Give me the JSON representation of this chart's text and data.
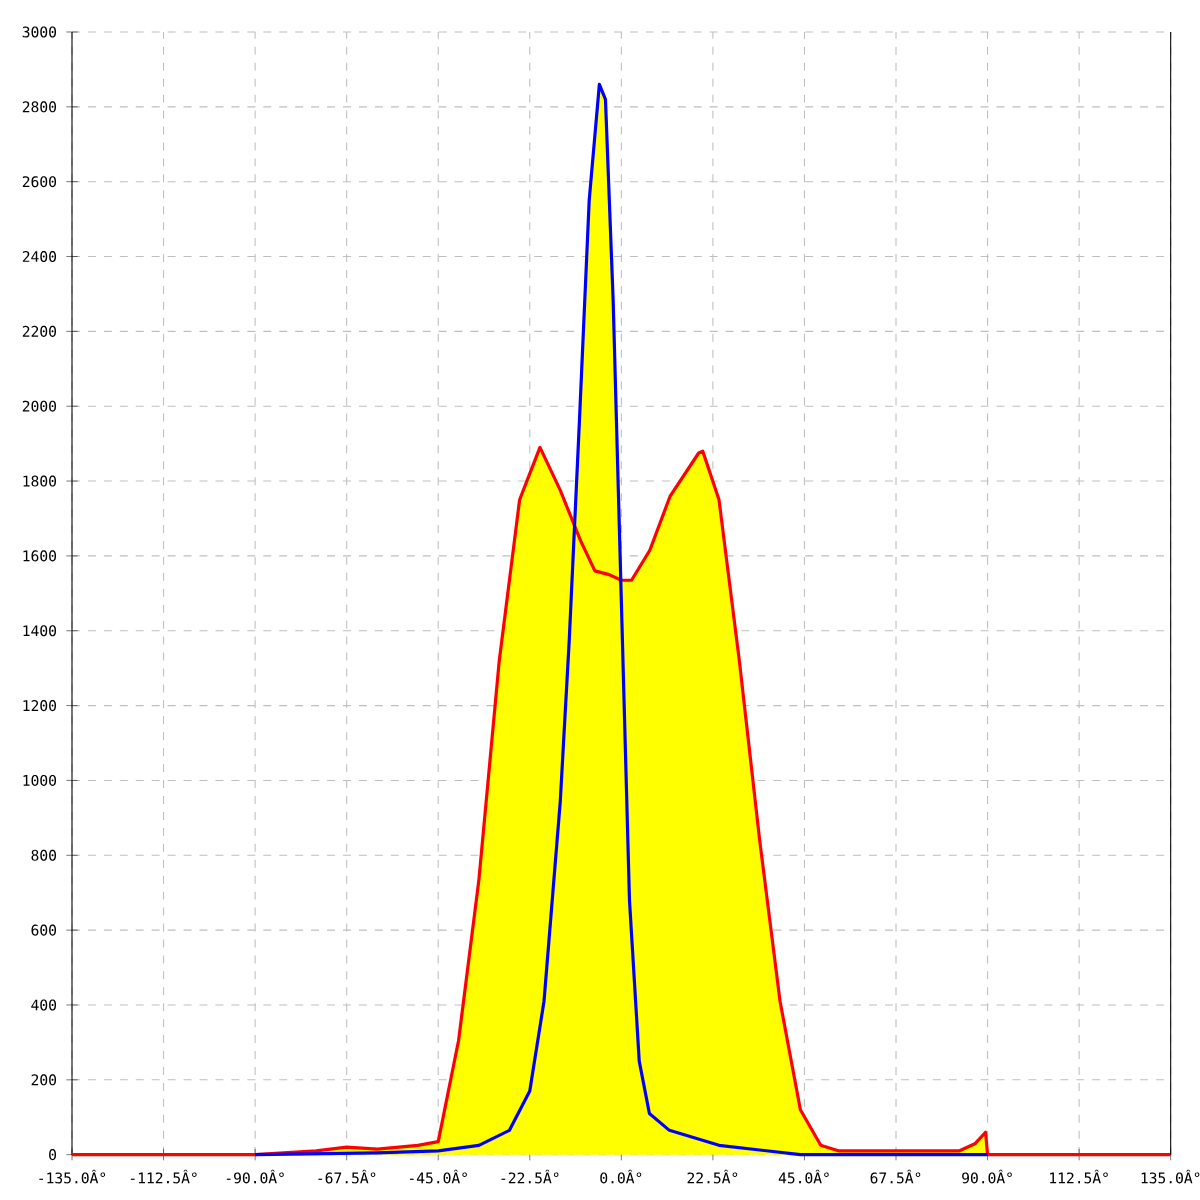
{
  "chart_data": {
    "type": "area",
    "xlim": [
      -135,
      135
    ],
    "ylim": [
      0,
      3000
    ],
    "xticks": [
      {
        "value": -135,
        "label": "-135.0Â°"
      },
      {
        "value": -112.5,
        "label": "-112.5Â°"
      },
      {
        "value": -90,
        "label": "-90.0Â°"
      },
      {
        "value": -67.5,
        "label": "-67.5Â°"
      },
      {
        "value": -45,
        "label": "-45.0Â°"
      },
      {
        "value": -22.5,
        "label": "-22.5Â°"
      },
      {
        "value": 0,
        "label": "0.0Â°"
      },
      {
        "value": 22.5,
        "label": "22.5Â°"
      },
      {
        "value": 45,
        "label": "45.0Â°"
      },
      {
        "value": 67.5,
        "label": "67.5Â°"
      },
      {
        "value": 90,
        "label": "90.0Â°"
      },
      {
        "value": 112.5,
        "label": "112.5Â°"
      },
      {
        "value": 135,
        "label": "135.0Â°"
      }
    ],
    "yticks": [
      0,
      200,
      400,
      600,
      800,
      1000,
      1200,
      1400,
      1600,
      1800,
      2000,
      2200,
      2400,
      2600,
      2800,
      3000
    ],
    "grid": true,
    "series": [
      {
        "color": "#ffff00",
        "x": [
          -135,
          -90,
          -75,
          -67.5,
          -60,
          -50,
          -45,
          -40,
          -35,
          -30,
          -25,
          -20,
          -15,
          -11.5,
          -10.3,
          -7.9,
          -5.4,
          -3.9,
          -2,
          -0.2,
          0,
          2.5,
          7,
          12,
          19,
          20,
          24,
          29,
          34,
          39,
          44,
          49,
          53.5,
          70,
          83,
          87,
          89.5,
          90,
          135
        ],
        "values": [
          0,
          0,
          10,
          20,
          15,
          25,
          35,
          305,
          735,
          1320,
          1750,
          1890,
          1775,
          1680,
          1960,
          2550,
          2860,
          2820,
          2280,
          1540,
          1535,
          1535,
          1615,
          1760,
          1875,
          1880,
          1750,
          1320,
          840,
          410,
          120,
          25,
          10,
          10,
          10,
          30,
          60,
          0,
          0
        ]
      },
      {
        "type": "line",
        "color": "#ff0000",
        "x": [
          -135,
          -90,
          -75,
          -67.5,
          -60,
          -50,
          -45,
          -40,
          -35,
          -30,
          -25,
          -20,
          -15,
          -10,
          -6.5,
          -3,
          0,
          2.5,
          7,
          12,
          19,
          20,
          24,
          29,
          34,
          39,
          44,
          49,
          53.5,
          70,
          83,
          87,
          89.5,
          90,
          135
        ],
        "values": [
          0,
          0,
          10,
          20,
          15,
          25,
          35,
          305,
          735,
          1320,
          1750,
          1890,
          1775,
          1640,
          1560,
          1550,
          1535,
          1535,
          1615,
          1760,
          1875,
          1880,
          1750,
          1320,
          840,
          410,
          120,
          25,
          10,
          10,
          10,
          30,
          60,
          0,
          0
        ]
      },
      {
        "type": "line",
        "color": "#0000ff",
        "x": [
          -90,
          -60,
          -45,
          -35,
          -27.5,
          -22.5,
          -19,
          -15,
          -12.8,
          -10.3,
          -7.9,
          -5.4,
          -3.9,
          -2,
          0,
          2,
          4.4,
          6.9,
          11.8,
          24,
          44,
          60,
          90
        ],
        "values": [
          0,
          5,
          10,
          25,
          65,
          170,
          410,
          945,
          1375,
          1960,
          2550,
          2860,
          2820,
          2280,
          1480,
          680,
          250,
          110,
          65,
          25,
          0,
          0,
          0
        ]
      }
    ]
  }
}
